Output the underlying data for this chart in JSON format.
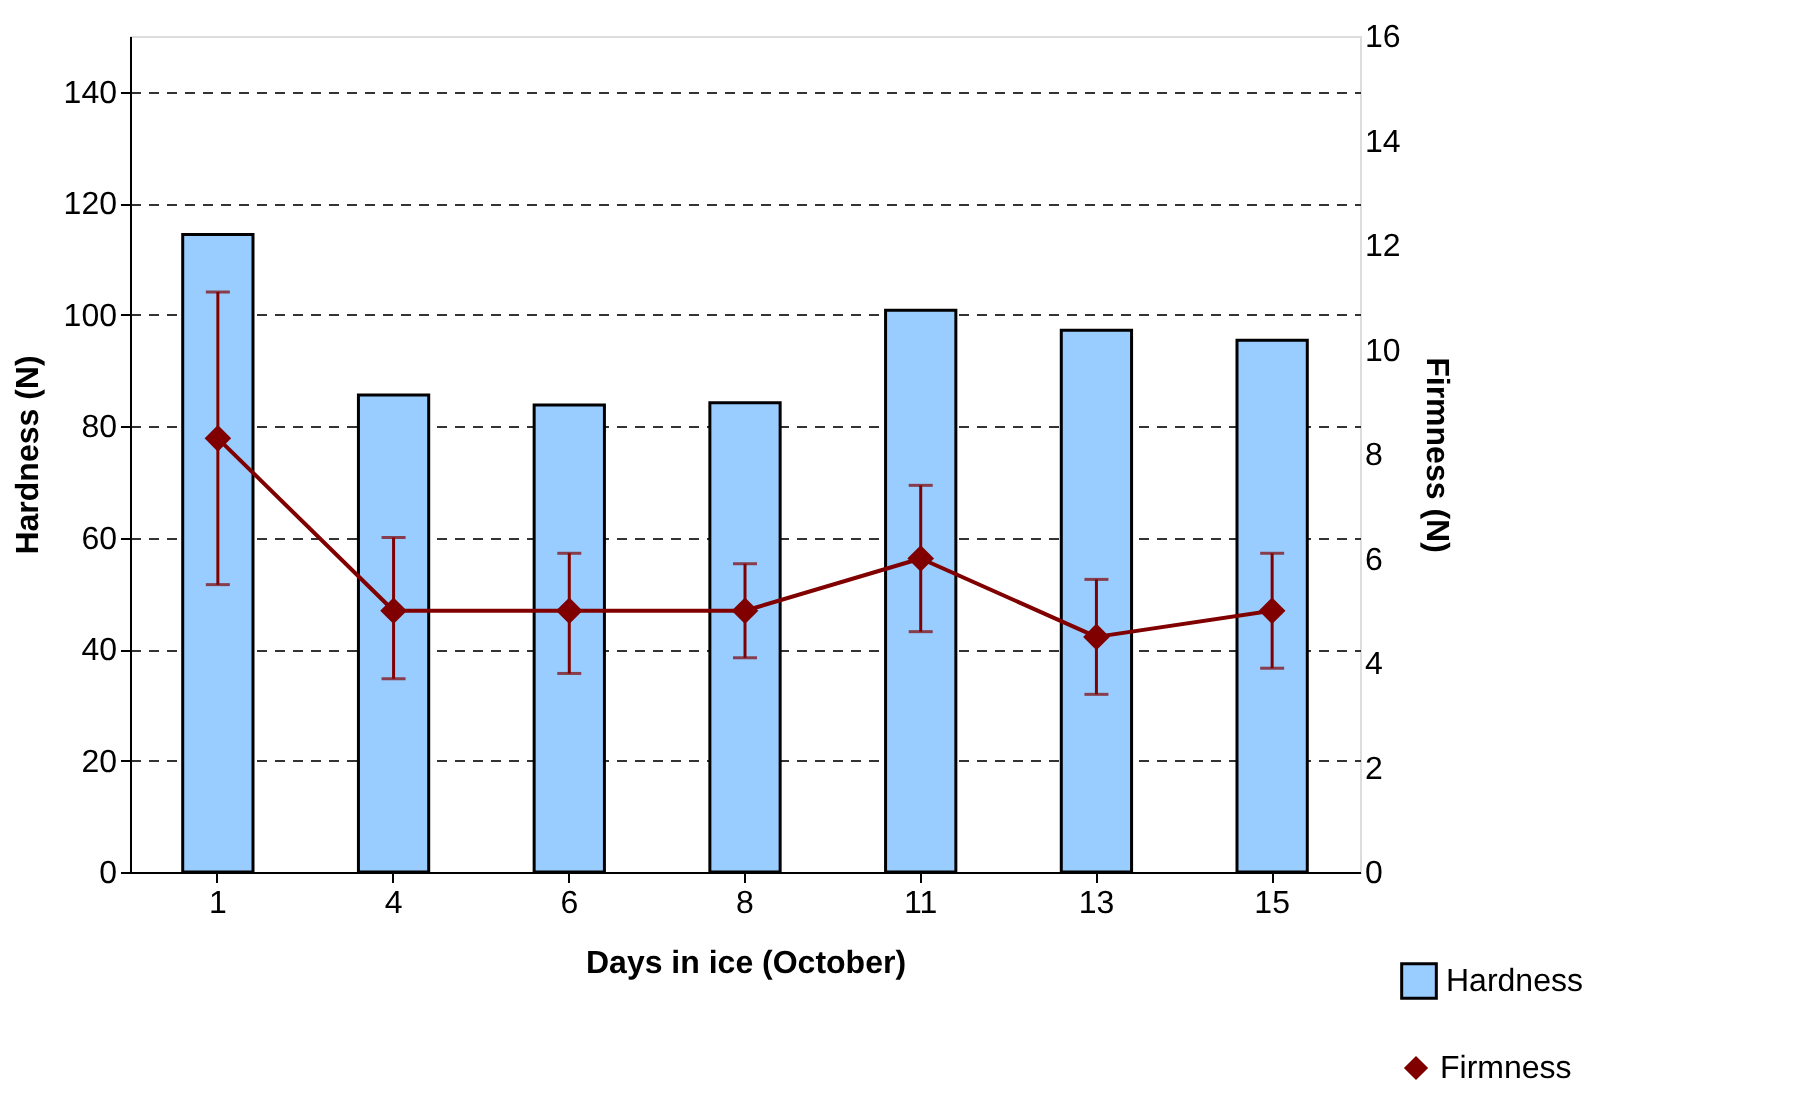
{
  "chart_data": {
    "type": "bar",
    "xlabel": "Days in ice (October)",
    "ylabel": "Hardness (N)",
    "y2label": "Firmness (N)",
    "categories": [
      "1",
      "4",
      "6",
      "8",
      "11",
      "13",
      "15"
    ],
    "series": [
      {
        "name": "Hardness",
        "color": "#99ccff",
        "values": [
          114.4,
          85.6,
          83.8,
          84.2,
          100.8,
          97.2,
          95.4
        ]
      },
      {
        "name": "Firmness",
        "type": "line",
        "axis": "y2",
        "color": "#800000",
        "marker": "diamond",
        "values": [
          8.3,
          5.0,
          5.0,
          5.0,
          6.0,
          4.5,
          5.0
        ],
        "errors": [
          [
            5.5,
            11.1
          ],
          [
            3.7,
            6.4
          ],
          [
            3.8,
            6.1
          ],
          [
            4.1,
            5.9
          ],
          [
            4.6,
            7.4
          ],
          [
            3.4,
            5.6
          ],
          [
            3.9,
            6.1
          ]
        ]
      }
    ],
    "ylim": [
      0,
      150
    ],
    "yticks": [
      0,
      20,
      40,
      60,
      80,
      100,
      120,
      140
    ],
    "y2lim": [
      0,
      16
    ],
    "y2ticks": [
      0,
      2,
      4,
      6,
      8,
      10,
      12,
      14,
      16
    ],
    "grid": "y",
    "legend": "bottom right"
  }
}
